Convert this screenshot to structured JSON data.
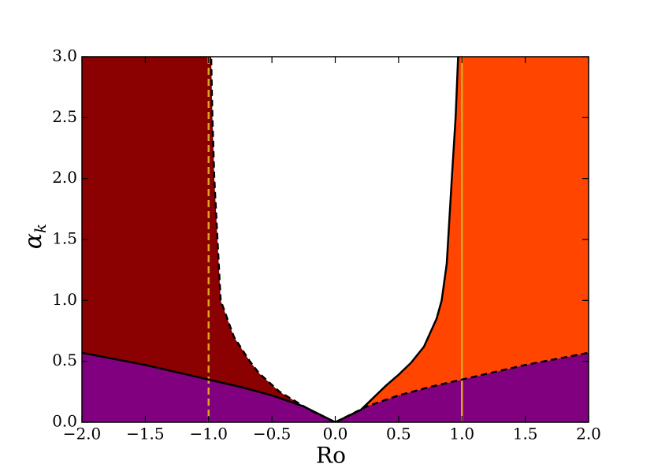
{
  "chart_data": {
    "type": "area",
    "xlabel": "Ro",
    "ylabel": "α",
    "ylabel_subscript": "k",
    "xlim": [
      -2,
      2
    ],
    "ylim": [
      0,
      3
    ],
    "xticks": [
      {
        "value": -2,
        "label": "−2.0"
      },
      {
        "value": -1.5,
        "label": "−1.5"
      },
      {
        "value": -1,
        "label": "−1.0"
      },
      {
        "value": -0.5,
        "label": "−0.5"
      },
      {
        "value": 0,
        "label": "0.0"
      },
      0.5,
      {
        "value": 1,
        "label": "1.0"
      },
      1.5,
      {
        "value": 2,
        "label": "2.0"
      }
    ],
    "yticks": [
      {
        "value": 0,
        "label": "0.0"
      },
      0.5,
      {
        "value": 1,
        "label": "1.0"
      },
      1.5,
      {
        "value": 2,
        "label": "2.0"
      },
      2.5,
      {
        "value": 3,
        "label": "3.0"
      }
    ],
    "curves": [
      {
        "x": [
          -2,
          -1.75,
          -1.5,
          -1.25,
          -1,
          -0.75,
          -0.5,
          -0.25,
          0
        ],
        "values": [
          0.57,
          0.52,
          0.47,
          0.41,
          0.35,
          0.29,
          0.22,
          0.13,
          0
        ],
        "color": "#000000",
        "dash": false,
        "fill": "#800080"
      },
      {
        "x": [
          0,
          0.25,
          0.5,
          0.75,
          1,
          1.25,
          1.5,
          1.75,
          2
        ],
        "values": [
          0,
          0.13,
          0.22,
          0.29,
          0.35,
          0.41,
          0.47,
          0.52,
          0.57
        ],
        "color": "#000000",
        "dash": true,
        "fill": "#800080"
      },
      {
        "x": [
          0,
          -0.2,
          -0.44,
          -0.6,
          -0.675,
          -0.8,
          -0.905,
          -0.955,
          -0.97,
          -0.98
        ],
        "values": [
          0,
          0.1,
          0.25,
          0.4,
          0.5,
          0.7,
          1,
          2,
          2.5,
          3
        ],
        "color": "#000000",
        "dash": true,
        "fill": "#8b0000"
      },
      {
        "x": [
          0,
          0.2,
          0.4,
          0.5,
          0.6,
          0.7,
          0.8,
          0.84,
          0.88,
          0.92,
          0.95,
          0.97
        ],
        "values": [
          0,
          0.1,
          0.3,
          0.39,
          0.49,
          0.62,
          0.85,
          1,
          1.3,
          2,
          2.5,
          3
        ],
        "color": "#000000",
        "dash": false,
        "fill": "#ff4500"
      }
    ],
    "vlines": [
      {
        "x": -1,
        "color": "#daa520",
        "dash": true
      },
      {
        "x": 1,
        "color": "#daa520",
        "dash": false
      }
    ]
  }
}
